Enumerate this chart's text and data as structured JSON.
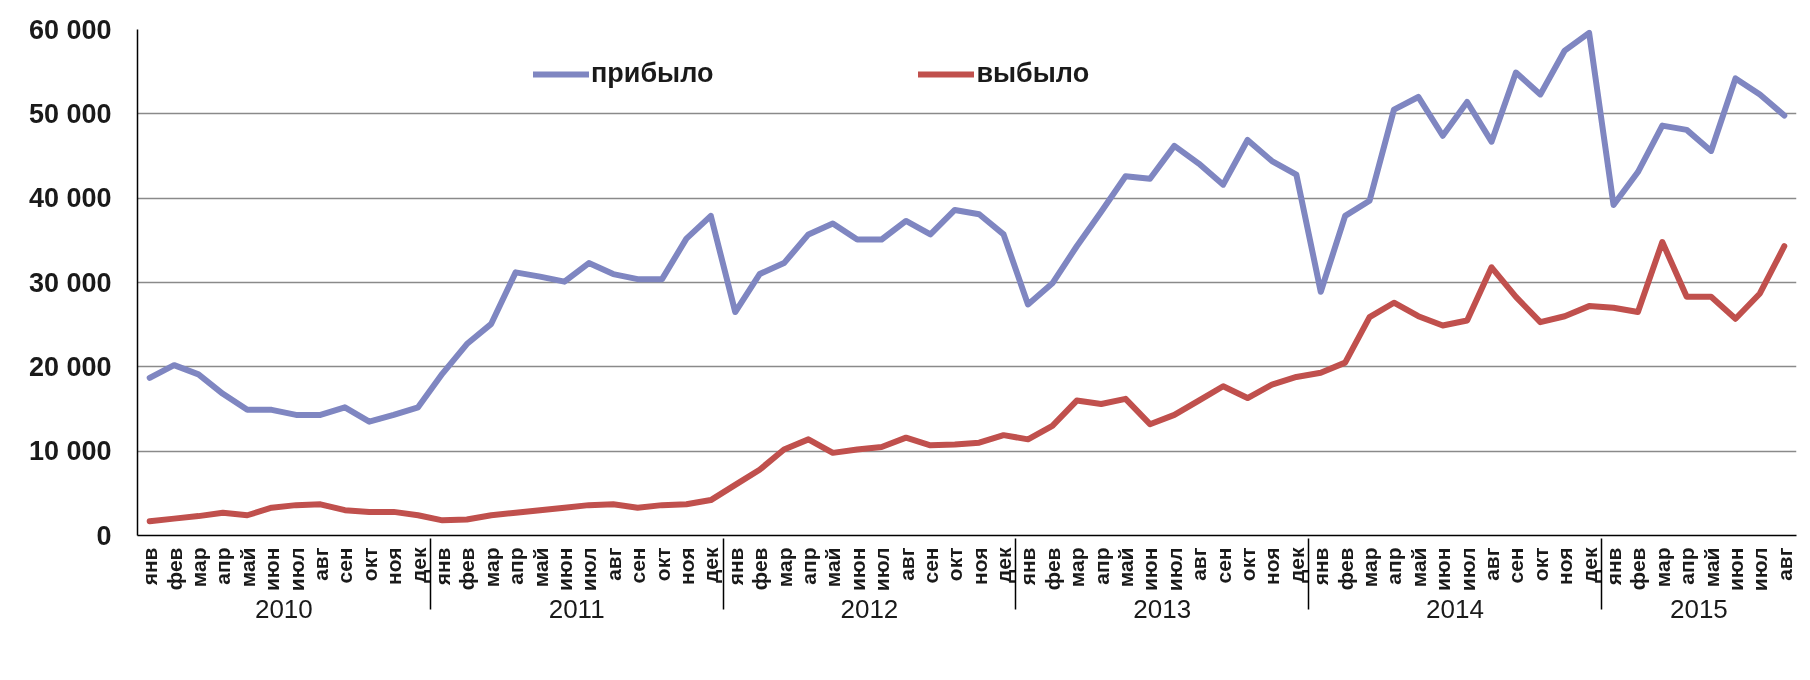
{
  "chart_data": {
    "type": "line",
    "categories": [
      [
        "2010",
        "янв"
      ],
      [
        null,
        "фев"
      ],
      [
        null,
        "мар"
      ],
      [
        null,
        "апр"
      ],
      [
        null,
        "май"
      ],
      [
        null,
        "июн"
      ],
      [
        null,
        "июл"
      ],
      [
        null,
        "авг"
      ],
      [
        null,
        "сен"
      ],
      [
        null,
        "окт"
      ],
      [
        null,
        "ноя"
      ],
      [
        null,
        "дек"
      ],
      [
        "2011",
        "янв"
      ],
      [
        null,
        "фев"
      ],
      [
        null,
        "мар"
      ],
      [
        null,
        "апр"
      ],
      [
        null,
        "май"
      ],
      [
        null,
        "июн"
      ],
      [
        null,
        "июл"
      ],
      [
        null,
        "авг"
      ],
      [
        null,
        "сен"
      ],
      [
        null,
        "окт"
      ],
      [
        null,
        "ноя"
      ],
      [
        null,
        "дек"
      ],
      [
        "2012",
        "янв"
      ],
      [
        null,
        "фев"
      ],
      [
        null,
        "мар"
      ],
      [
        null,
        "апр"
      ],
      [
        null,
        "май"
      ],
      [
        null,
        "июн"
      ],
      [
        null,
        "июл"
      ],
      [
        null,
        "авг"
      ],
      [
        null,
        "сен"
      ],
      [
        null,
        "окт"
      ],
      [
        null,
        "ноя"
      ],
      [
        null,
        "дек"
      ],
      [
        "2013",
        "янв"
      ],
      [
        null,
        "фев"
      ],
      [
        null,
        "мар"
      ],
      [
        null,
        "апр"
      ],
      [
        null,
        "май"
      ],
      [
        null,
        "июн"
      ],
      [
        null,
        "июл"
      ],
      [
        null,
        "авг"
      ],
      [
        null,
        "сен"
      ],
      [
        null,
        "окт"
      ],
      [
        null,
        "ноя"
      ],
      [
        null,
        "дек"
      ],
      [
        "2014",
        "янв"
      ],
      [
        null,
        "фев"
      ],
      [
        null,
        "мар"
      ],
      [
        null,
        "апр"
      ],
      [
        null,
        "май"
      ],
      [
        null,
        "июн"
      ],
      [
        null,
        "июл"
      ],
      [
        null,
        "авг"
      ],
      [
        null,
        "сен"
      ],
      [
        null,
        "окт"
      ],
      [
        null,
        "ноя"
      ],
      [
        null,
        "дек"
      ],
      [
        "2015",
        "янв"
      ],
      [
        null,
        "фев"
      ],
      [
        null,
        "мар"
      ],
      [
        null,
        "апр"
      ],
      [
        null,
        "май"
      ],
      [
        null,
        "июн"
      ],
      [
        null,
        "июл"
      ],
      [
        null,
        "авг"
      ]
    ],
    "series": [
      {
        "name": "прибыло",
        "color": "#7f86c1",
        "values": [
          18700,
          20200,
          19100,
          16800,
          14900,
          14900,
          14300,
          14300,
          15200,
          13500,
          14300,
          15200,
          19200,
          22700,
          25100,
          31200,
          30700,
          30100,
          32300,
          31000,
          30400,
          30400,
          35200,
          37900,
          26500,
          31000,
          32300,
          35700,
          37000,
          35100,
          35100,
          37300,
          35700,
          38600,
          38100,
          35700,
          27400,
          29900,
          34300,
          38400,
          42600,
          42300,
          46200,
          44100,
          41600,
          46900,
          44400,
          42800,
          28900,
          37900,
          39700,
          50500,
          52000,
          47400,
          51400,
          46700,
          54900,
          52300,
          57500,
          59600,
          39200,
          43100,
          48600,
          48100,
          45600,
          54200,
          52300,
          49800
        ]
      },
      {
        "name": "выбыло",
        "color": "#c0504d",
        "values": [
          1700,
          2000,
          2300,
          2700,
          2400,
          3300,
          3600,
          3700,
          3000,
          2800,
          2800,
          2400,
          1800,
          1900,
          2400,
          2700,
          3000,
          3300,
          3600,
          3700,
          3300,
          3600,
          3700,
          4200,
          6000,
          7800,
          10200,
          11400,
          9800,
          10200,
          10500,
          11600,
          10700,
          10800,
          11000,
          11900,
          11400,
          13000,
          16000,
          15600,
          16200,
          13200,
          14300,
          16000,
          17700,
          16300,
          17900,
          18800,
          19300,
          20500,
          25900,
          27600,
          26000,
          24900,
          25500,
          31800,
          28300,
          25300,
          26000,
          27200,
          27000,
          26500,
          34800,
          28300,
          28300,
          25700,
          28700,
          34300
        ]
      }
    ],
    "ylim": [
      0,
      60000
    ],
    "yticks": [
      0,
      {
        "value": 10000,
        "label": "10 000"
      },
      {
        "value": 20000,
        "label": "20 000"
      },
      {
        "value": 30000,
        "label": "30 000"
      },
      {
        "value": 40000,
        "label": "40 000"
      },
      {
        "value": 50000,
        "label": "50 000"
      },
      {
        "value": 60000,
        "label": "60 000"
      }
    ],
    "grid": "y",
    "legend": "top"
  }
}
